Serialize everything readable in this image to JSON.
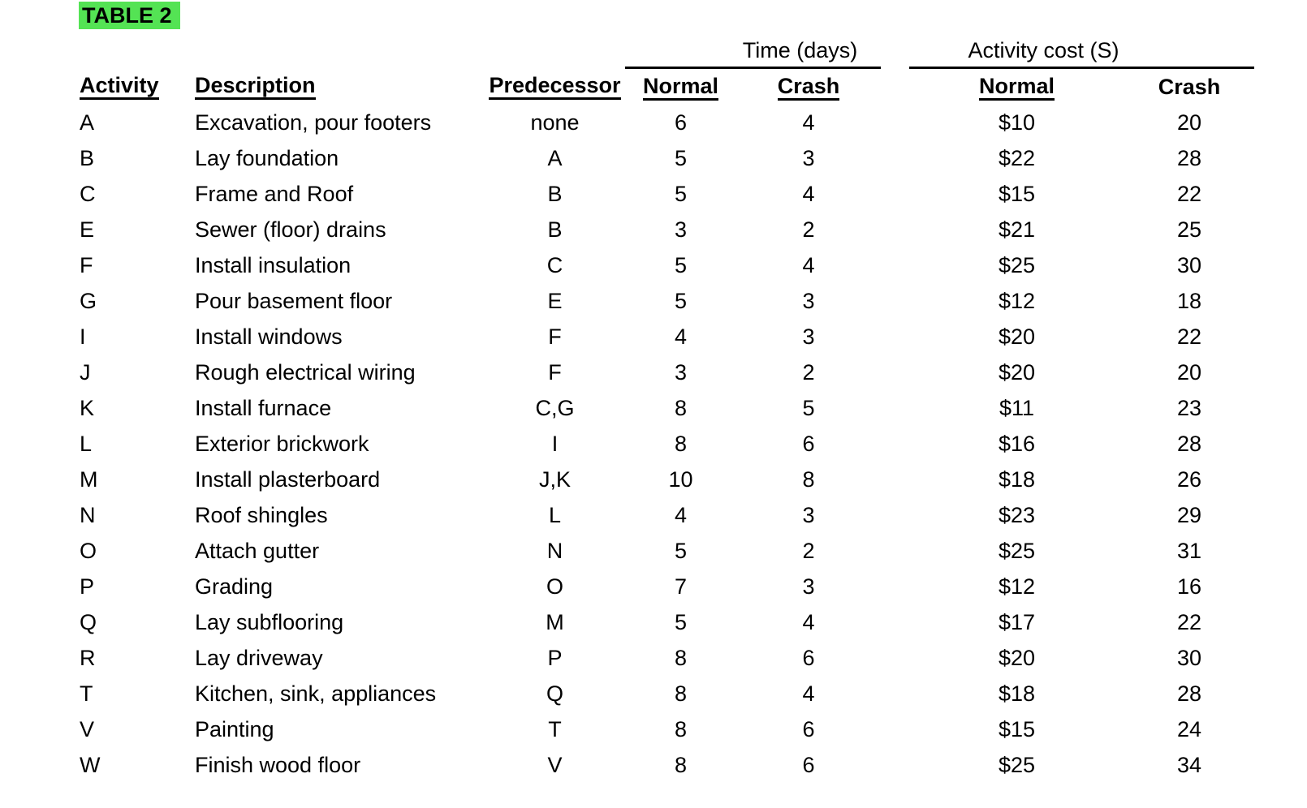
{
  "title": "TABLE 2",
  "colors": {
    "highlight_green": "#54e354",
    "text": "#000000"
  },
  "table": {
    "group_headers": {
      "time": "Time (days)",
      "cost": "Activity cost (S)"
    },
    "columns": {
      "activity": "Activity",
      "description": "Description",
      "predecessor": "Predecessor",
      "time_normal": "Normal",
      "time_crash": "Crash",
      "cost_normal": "Normal",
      "cost_crash": "Crash"
    },
    "rows": [
      {
        "activity": "A",
        "description": "Excavation, pour footers",
        "predecessor": "none",
        "time_normal": "6",
        "time_crash": "4",
        "cost_normal": "$10",
        "cost_crash": "20"
      },
      {
        "activity": "B",
        "description": "Lay foundation",
        "predecessor": "A",
        "time_normal": "5",
        "time_crash": "3",
        "cost_normal": "$22",
        "cost_crash": "28"
      },
      {
        "activity": "C",
        "description": "Frame and Roof",
        "predecessor": "B",
        "time_normal": "5",
        "time_crash": "4",
        "cost_normal": "$15",
        "cost_crash": "22"
      },
      {
        "activity": "E",
        "description": "Sewer (floor) drains",
        "predecessor": "B",
        "time_normal": "3",
        "time_crash": "2",
        "cost_normal": "$21",
        "cost_crash": "25"
      },
      {
        "activity": "F",
        "description": "Install insulation",
        "predecessor": "C",
        "time_normal": "5",
        "time_crash": "4",
        "cost_normal": "$25",
        "cost_crash": "30"
      },
      {
        "activity": "G",
        "description": "Pour basement floor",
        "predecessor": "E",
        "time_normal": "5",
        "time_crash": "3",
        "cost_normal": "$12",
        "cost_crash": "18"
      },
      {
        "activity": "I",
        "description": "Install windows",
        "predecessor": "F",
        "time_normal": "4",
        "time_crash": "3",
        "cost_normal": "$20",
        "cost_crash": "22"
      },
      {
        "activity": "J",
        "description": "Rough electrical wiring",
        "predecessor": "F",
        "time_normal": "3",
        "time_crash": "2",
        "cost_normal": "$20",
        "cost_crash": "20"
      },
      {
        "activity": "K",
        "description": "Install furnace",
        "predecessor": "C,G",
        "time_normal": "8",
        "time_crash": "5",
        "cost_normal": "$11",
        "cost_crash": "23"
      },
      {
        "activity": "L",
        "description": "Exterior brickwork",
        "predecessor": "I",
        "time_normal": "8",
        "time_crash": "6",
        "cost_normal": "$16",
        "cost_crash": "28"
      },
      {
        "activity": "M",
        "description": "Install plasterboard",
        "predecessor": "J,K",
        "time_normal": "10",
        "time_crash": "8",
        "cost_normal": "$18",
        "cost_crash": "26"
      },
      {
        "activity": "N",
        "description": "Roof shingles",
        "predecessor": "L",
        "time_normal": "4",
        "time_crash": "3",
        "cost_normal": "$23",
        "cost_crash": "29"
      },
      {
        "activity": "O",
        "description": "Attach gutter",
        "predecessor": "N",
        "time_normal": "5",
        "time_crash": "2",
        "cost_normal": "$25",
        "cost_crash": "31"
      },
      {
        "activity": "P",
        "description": "Grading",
        "predecessor": "O",
        "time_normal": "7",
        "time_crash": "3",
        "cost_normal": "$12",
        "cost_crash": "16"
      },
      {
        "activity": "Q",
        "description": "Lay subflooring",
        "predecessor": "M",
        "time_normal": "5",
        "time_crash": "4",
        "cost_normal": "$17",
        "cost_crash": "22"
      },
      {
        "activity": "R",
        "description": "Lay driveway",
        "predecessor": "P",
        "time_normal": "8",
        "time_crash": "6",
        "cost_normal": "$20",
        "cost_crash": "30"
      },
      {
        "activity": "T",
        "description": "Kitchen, sink, appliances",
        "predecessor": "Q",
        "time_normal": "8",
        "time_crash": "4",
        "cost_normal": "$18",
        "cost_crash": "28"
      },
      {
        "activity": "V",
        "description": "Painting",
        "predecessor": "T",
        "time_normal": "8",
        "time_crash": "6",
        "cost_normal": "$15",
        "cost_crash": "24"
      },
      {
        "activity": "W",
        "description": "Finish wood floor",
        "predecessor": "V",
        "time_normal": "8",
        "time_crash": "6",
        "cost_normal": "$25",
        "cost_crash": "34"
      }
    ]
  }
}
